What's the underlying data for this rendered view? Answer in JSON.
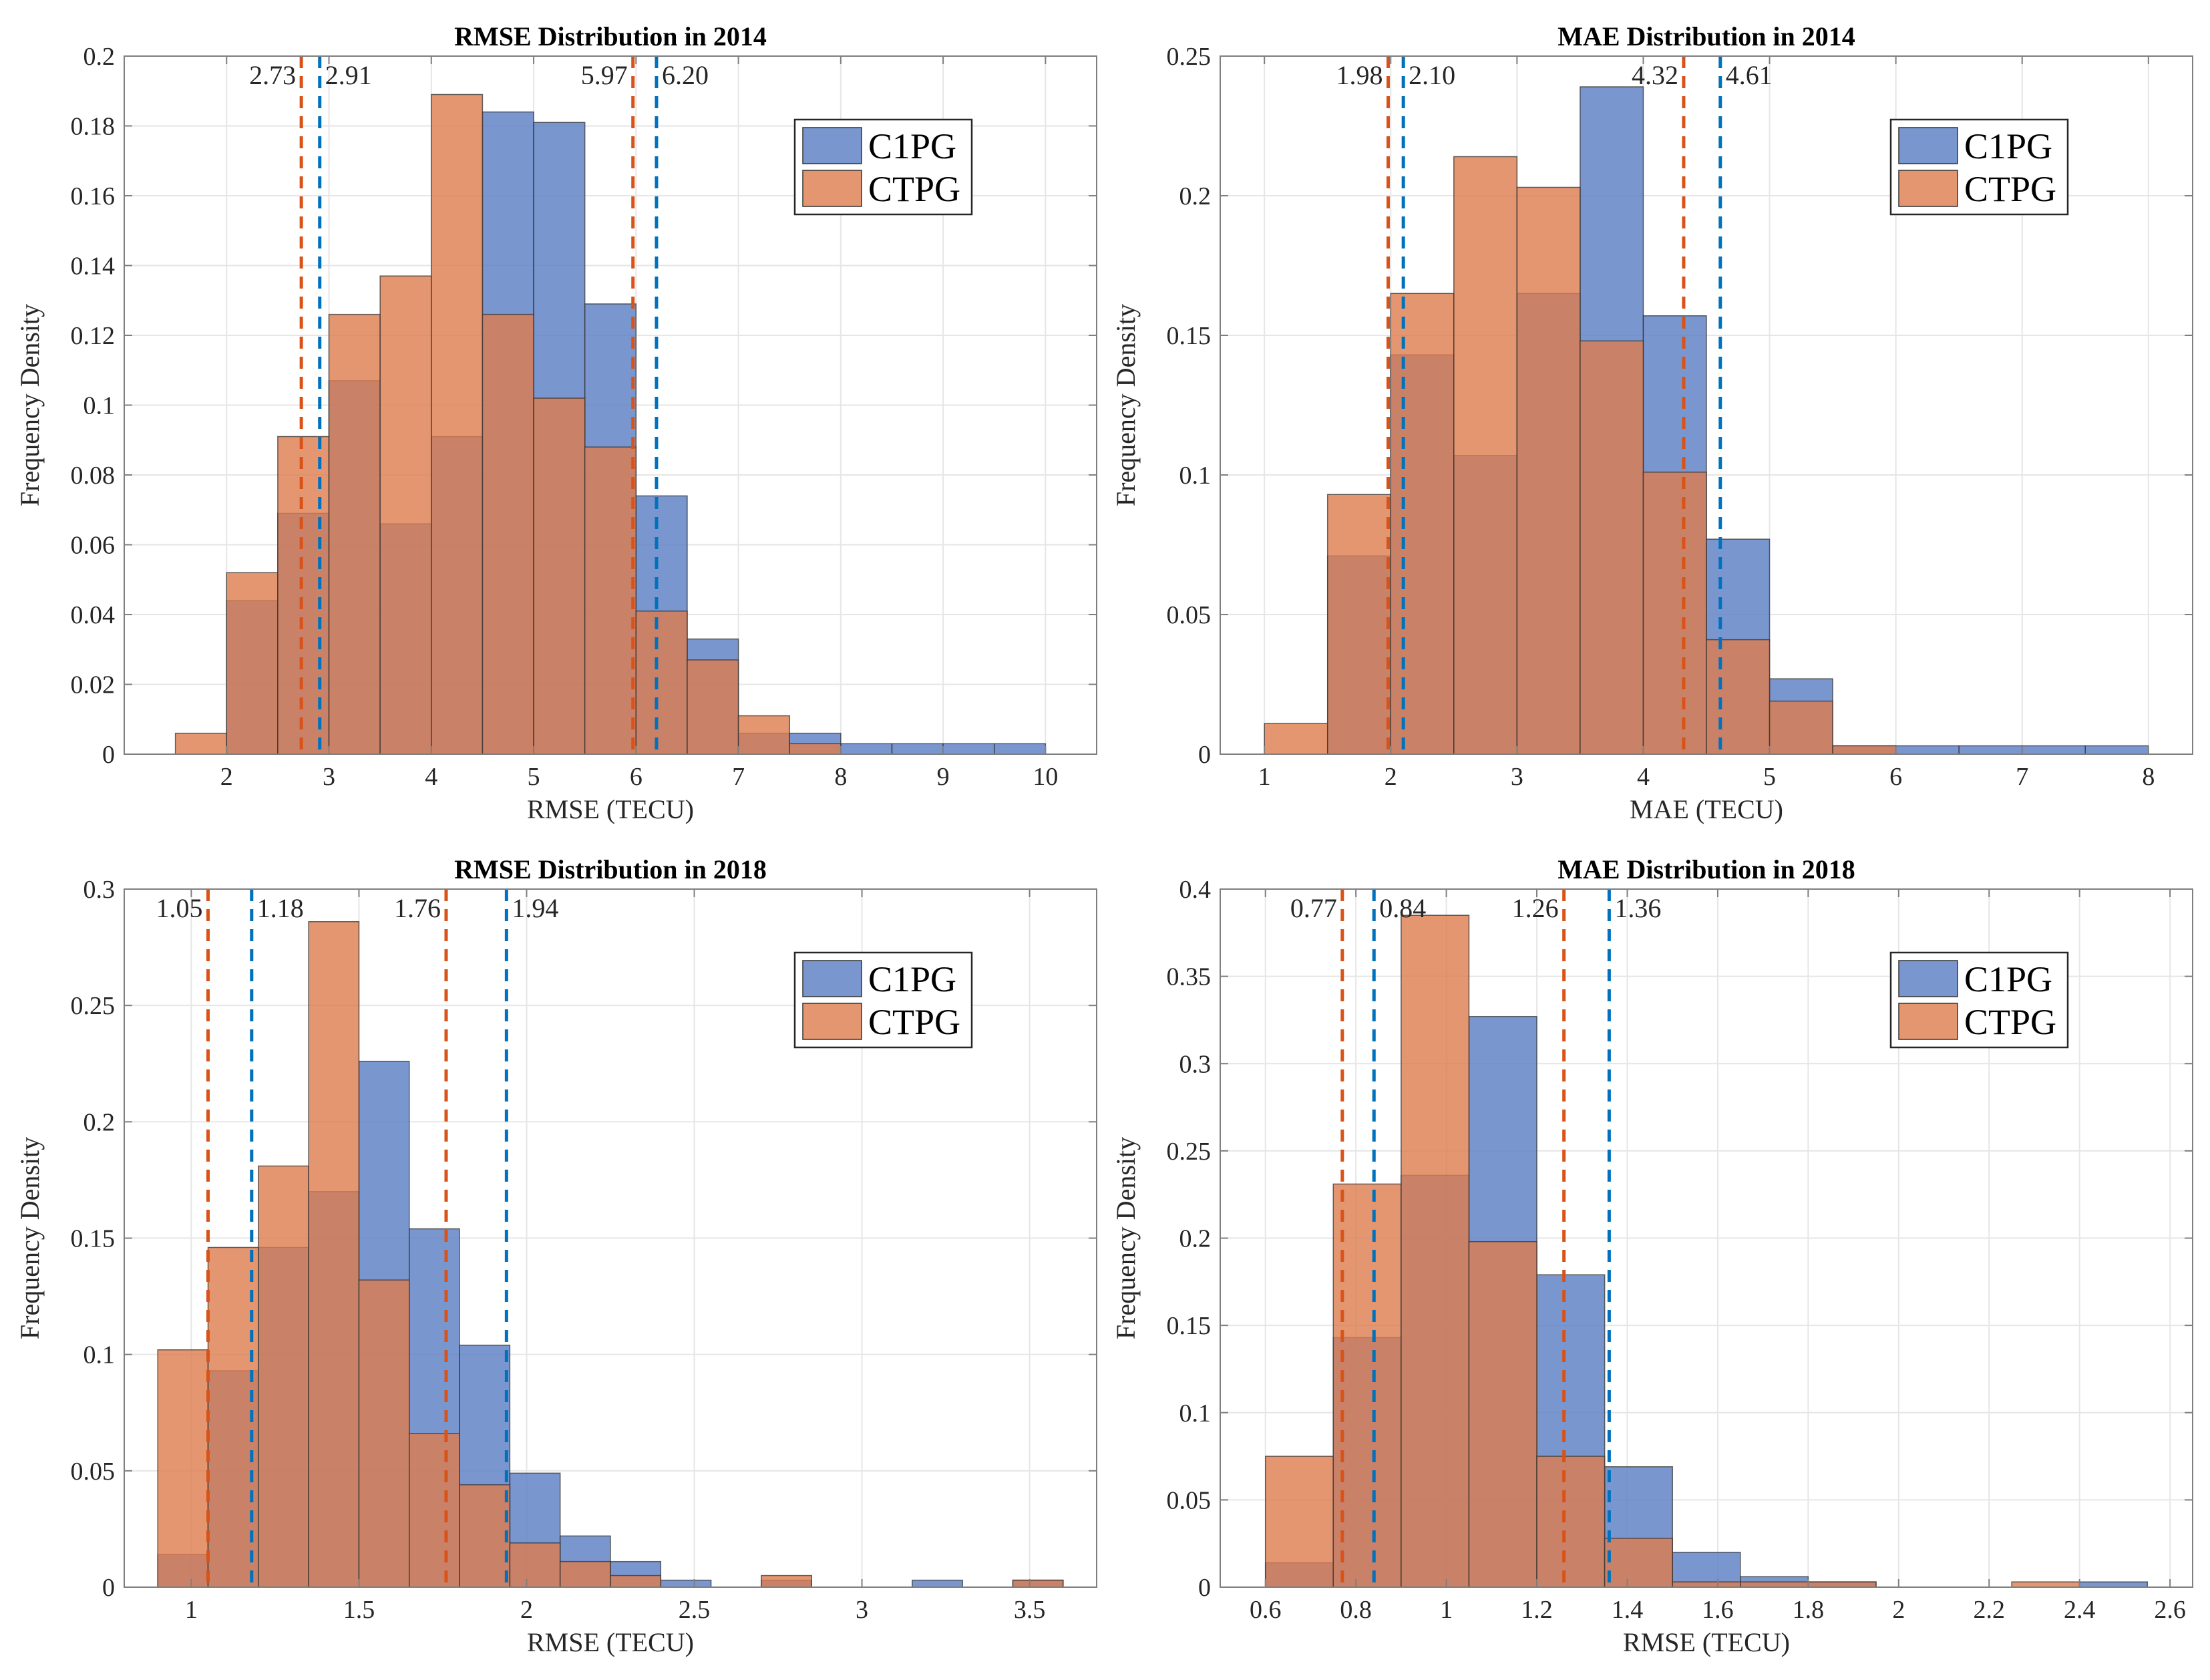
{
  "colors": {
    "c1pg": "#5b7fc5",
    "ctpg": "#dd7c4e",
    "c1pg_line": "#0072bd",
    "ctpg_line": "#d95319",
    "grid": "#e6e6e6",
    "axis": "#7f7f7f"
  },
  "chart_data": [
    {
      "type": "bar",
      "title": "RMSE Distribution in  2014",
      "xlabel": "RMSE (TECU)",
      "ylabel": "Frequency Density",
      "xlim": [
        1.0,
        10.5
      ],
      "ylim": [
        0,
        0.2
      ],
      "xticks": [
        2,
        3,
        4,
        5,
        6,
        7,
        8,
        9,
        10
      ],
      "xtick_labels": [
        "2",
        "3",
        "4",
        "5",
        "6",
        "7",
        "8",
        "9",
        "10"
      ],
      "yticks": [
        0,
        0.02,
        0.04,
        0.06,
        0.08,
        0.1,
        0.12,
        0.14,
        0.16,
        0.18,
        0.2
      ],
      "ytick_labels": [
        "0",
        "0.02",
        "0.04",
        "0.06",
        "0.08",
        "0.1",
        "0.12",
        "0.14",
        "0.16",
        "0.18",
        "0.2"
      ],
      "bin_edges": [
        1.5,
        2.0,
        2.5,
        3.0,
        3.5,
        4.0,
        4.5,
        5.0,
        5.5,
        6.0,
        6.5,
        7.0,
        7.5,
        8.0,
        8.5,
        9.0,
        9.5,
        10.0
      ],
      "legend": [
        "C1PG",
        "CTPG"
      ],
      "legend_position": "top-right",
      "series": [
        {
          "name": "C1PG",
          "values": [
            0,
            0.044,
            0.069,
            0.107,
            0.066,
            0.091,
            0.184,
            0.181,
            0.129,
            0.074,
            0.033,
            0.006,
            0.006,
            0.003,
            0.003,
            0.003,
            0.003
          ]
        },
        {
          "name": "CTPG",
          "values": [
            0.006,
            0.052,
            0.091,
            0.126,
            0.137,
            0.189,
            0.126,
            0.102,
            0.088,
            0.041,
            0.027,
            0.011,
            0.003,
            0,
            0,
            0,
            0
          ]
        }
      ],
      "vlines": [
        {
          "series": "CTPG",
          "x": 2.73,
          "label": "2.73"
        },
        {
          "series": "C1PG",
          "x": 2.91,
          "label": "2.91"
        },
        {
          "series": "CTPG",
          "x": 5.97,
          "label": "5.97"
        },
        {
          "series": "C1PG",
          "x": 6.2,
          "label": "6.20"
        }
      ]
    },
    {
      "type": "bar",
      "title": "MAE Distribution in  2014",
      "xlabel": "MAE (TECU)",
      "ylabel": "Frequency Density",
      "xlim": [
        0.65,
        8.35
      ],
      "ylim": [
        0,
        0.25
      ],
      "xticks": [
        1,
        2,
        3,
        4,
        5,
        6,
        7,
        8
      ],
      "xtick_labels": [
        "1",
        "2",
        "3",
        "4",
        "5",
        "6",
        "7",
        "8"
      ],
      "yticks": [
        0,
        0.05,
        0.1,
        0.15,
        0.2,
        0.25
      ],
      "ytick_labels": [
        "0",
        "0.05",
        "0.1",
        "0.15",
        "0.2",
        "0.25"
      ],
      "bin_edges": [
        1.0,
        1.5,
        2.0,
        2.5,
        3.0,
        3.5,
        4.0,
        4.5,
        5.0,
        5.5,
        6.0,
        6.5,
        7.0,
        7.5,
        8.0
      ],
      "legend": [
        "C1PG",
        "CTPG"
      ],
      "legend_position": "top-right",
      "series": [
        {
          "name": "C1PG",
          "values": [
            0,
            0.071,
            0.143,
            0.107,
            0.165,
            0.239,
            0.157,
            0.077,
            0.027,
            0.003,
            0.003,
            0.003,
            0.003,
            0.003
          ]
        },
        {
          "name": "CTPG",
          "values": [
            0.011,
            0.093,
            0.165,
            0.214,
            0.203,
            0.148,
            0.101,
            0.041,
            0.019,
            0.003,
            0,
            0,
            0,
            0
          ]
        }
      ],
      "vlines": [
        {
          "series": "CTPG",
          "x": 1.98,
          "label": "1.98"
        },
        {
          "series": "C1PG",
          "x": 2.1,
          "label": "2.10"
        },
        {
          "series": "CTPG",
          "x": 4.32,
          "label": "4.32"
        },
        {
          "series": "C1PG",
          "x": 4.61,
          "label": "4.61"
        }
      ]
    },
    {
      "type": "bar",
      "title": "RMSE Distribution in  2018",
      "xlabel": "RMSE (TECU)",
      "ylabel": "Frequency Density",
      "xlim": [
        0.8,
        3.7
      ],
      "ylim": [
        0,
        0.3
      ],
      "xticks": [
        1,
        1.5,
        2,
        2.5,
        3,
        3.5
      ],
      "xtick_labels": [
        "1",
        "1.5",
        "2",
        "2.5",
        "3",
        "3.5"
      ],
      "yticks": [
        0,
        0.05,
        0.1,
        0.15,
        0.2,
        0.25,
        0.3
      ],
      "ytick_labels": [
        "0",
        "0.05",
        "0.1",
        "0.15",
        "0.2",
        "0.25",
        "0.3"
      ],
      "bin_edges": [
        0.9,
        1.05,
        1.2,
        1.35,
        1.5,
        1.65,
        1.8,
        1.95,
        2.1,
        2.25,
        2.4,
        2.55,
        2.7,
        2.85,
        3.0,
        3.15,
        3.3,
        3.45,
        3.6
      ],
      "legend": [
        "C1PG",
        "CTPG"
      ],
      "legend_position": "top-right",
      "series": [
        {
          "name": "C1PG",
          "values": [
            0.014,
            0.093,
            0.146,
            0.17,
            0.226,
            0.154,
            0.104,
            0.049,
            0.022,
            0.011,
            0.003,
            0,
            0.003,
            0,
            0,
            0.003,
            0,
            0.003
          ]
        },
        {
          "name": "CTPG",
          "values": [
            0.102,
            0.146,
            0.181,
            0.286,
            0.132,
            0.066,
            0.044,
            0.019,
            0.011,
            0.005,
            0,
            0,
            0.005,
            0,
            0,
            0,
            0,
            0.003
          ]
        }
      ],
      "vlines": [
        {
          "series": "CTPG",
          "x": 1.05,
          "label": "1.05"
        },
        {
          "series": "C1PG",
          "x": 1.18,
          "label": "1.18"
        },
        {
          "series": "CTPG",
          "x": 1.76,
          "label": "1.76"
        },
        {
          "series": "C1PG",
          "x": 1.94,
          "label": "1.94"
        }
      ]
    },
    {
      "type": "bar",
      "title": "MAE Distribution in  2018",
      "xlabel": "RMSE (TECU)",
      "ylabel": "Frequency Density",
      "xlim": [
        0.5,
        2.65
      ],
      "ylim": [
        0,
        0.4
      ],
      "xticks": [
        0.6,
        0.8,
        1,
        1.2,
        1.4,
        1.6,
        1.8,
        2,
        2.2,
        2.4,
        2.6
      ],
      "xtick_labels": [
        "0.6",
        "0.8",
        "1",
        "1.2",
        "1.4",
        "1.6",
        "1.8",
        "2",
        "2.2",
        "2.4",
        "2.6"
      ],
      "yticks": [
        0,
        0.05,
        0.1,
        0.15,
        0.2,
        0.25,
        0.3,
        0.35,
        0.4
      ],
      "ytick_labels": [
        "0",
        "0.05",
        "0.1",
        "0.15",
        "0.2",
        "0.25",
        "0.3",
        "0.35",
        "0.4"
      ],
      "bin_edges": [
        0.6,
        0.75,
        0.9,
        1.05,
        1.2,
        1.35,
        1.5,
        1.65,
        1.8,
        1.95,
        2.1,
        2.25,
        2.4,
        2.55
      ],
      "legend": [
        "C1PG",
        "CTPG"
      ],
      "legend_position": "top-right",
      "series": [
        {
          "name": "C1PG",
          "values": [
            0.014,
            0.143,
            0.236,
            0.327,
            0.179,
            0.069,
            0.02,
            0.006,
            0.003,
            0,
            0,
            0,
            0.003
          ]
        },
        {
          "name": "CTPG",
          "values": [
            0.075,
            0.231,
            0.385,
            0.198,
            0.075,
            0.028,
            0.003,
            0.003,
            0.003,
            0,
            0,
            0.003,
            0
          ]
        }
      ],
      "vlines": [
        {
          "series": "CTPG",
          "x": 0.77,
          "label": "0.77"
        },
        {
          "series": "C1PG",
          "x": 0.84,
          "label": "0.84"
        },
        {
          "series": "CTPG",
          "x": 1.26,
          "label": "1.26"
        },
        {
          "series": "C1PG",
          "x": 1.36,
          "label": "1.36"
        }
      ]
    }
  ]
}
